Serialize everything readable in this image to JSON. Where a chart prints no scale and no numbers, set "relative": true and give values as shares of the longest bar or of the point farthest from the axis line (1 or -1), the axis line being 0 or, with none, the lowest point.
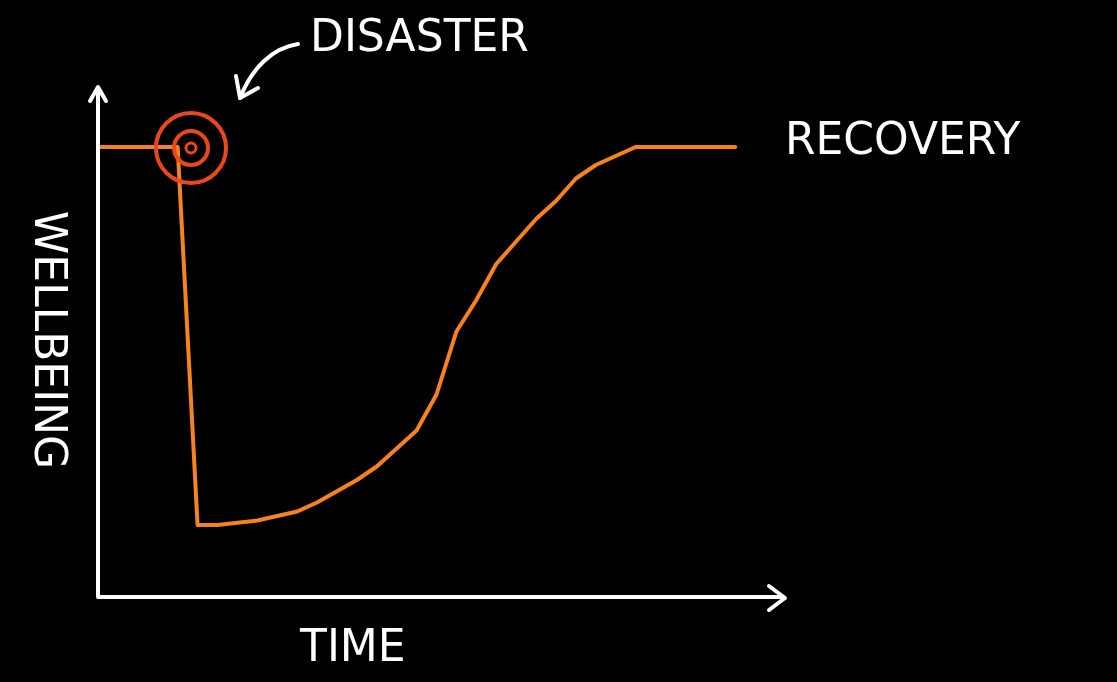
{
  "chart_data": {
    "type": "line",
    "relative": true,
    "xlabel": "TIME",
    "ylabel": "WELLBEING",
    "tick_labels": false,
    "marker": "none",
    "line_style": "solid",
    "categories": [
      null,
      null,
      null,
      null,
      null,
      null,
      null,
      null,
      null,
      null,
      null,
      null,
      null,
      null,
      null,
      null,
      null,
      null,
      null,
      null,
      null,
      null,
      null,
      null,
      null,
      null,
      null,
      null,
      null,
      null,
      null,
      null,
      null,
      null,
      null
    ],
    "values": [
      1,
      1,
      1,
      1,
      1,
      0.16,
      0.16,
      0.165,
      0.17,
      0.18,
      0.19,
      0.21,
      0.235,
      0.26,
      0.29,
      0.33,
      0.37,
      0.45,
      0.59,
      0.66,
      0.74,
      0.79,
      0.84,
      0.88,
      0.93,
      0.96,
      0.98,
      1,
      1,
      1,
      1,
      1,
      1,
      null,
      null
    ],
    "color": "#f7821e",
    "annotations": [
      "DISASTER",
      "RECOVERY"
    ]
  }
}
